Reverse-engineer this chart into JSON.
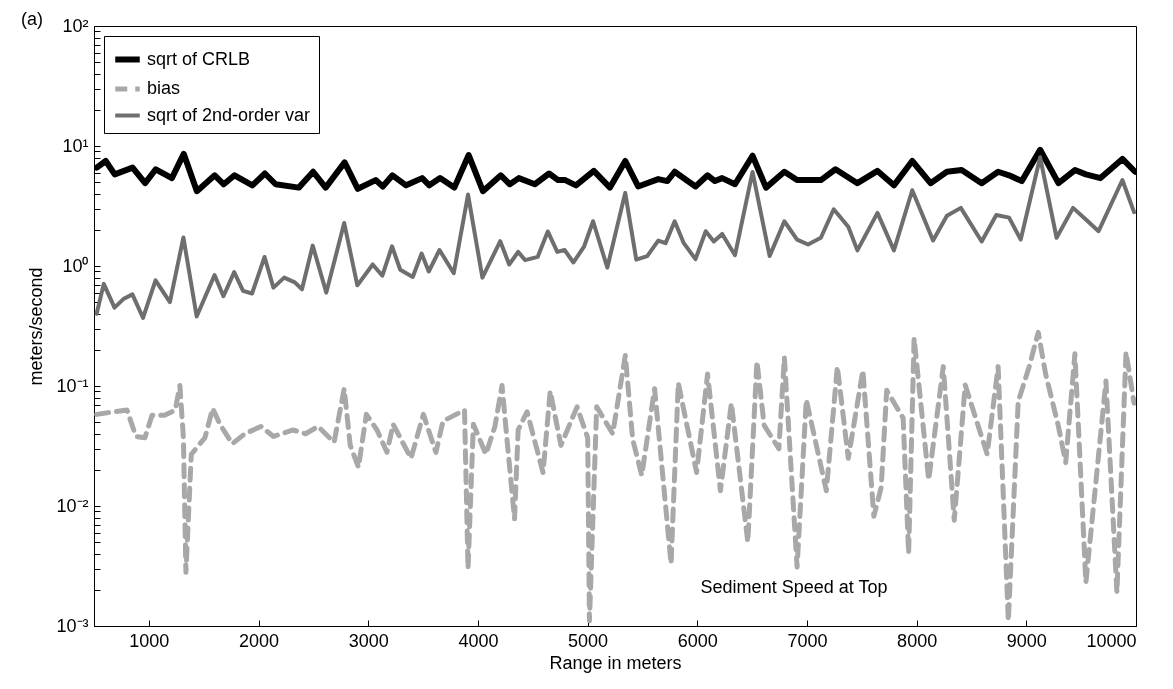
{
  "chart_data": {
    "type": "line",
    "xlabel": "Range in meters",
    "ylabel": "meters/second",
    "log": "y",
    "xlim": [
      500,
      10000
    ],
    "xticks": [
      1000,
      2000,
      3000,
      4000,
      5000,
      6000,
      7000,
      8000,
      9000,
      10000
    ],
    "ylim": [
      0.001,
      100
    ],
    "yticks": [
      {
        "value": 0.001,
        "label": "10⁻³"
      },
      {
        "value": 0.002,
        "label": null
      },
      {
        "value": 0.003,
        "label": null
      },
      {
        "value": 0.004,
        "label": null
      },
      {
        "value": 0.005,
        "label": null
      },
      {
        "value": 0.006,
        "label": null
      },
      {
        "value": 0.007,
        "label": null
      },
      {
        "value": 0.008,
        "label": null
      },
      {
        "value": 0.009,
        "label": null
      },
      {
        "value": 0.01,
        "label": "10⁻²"
      },
      {
        "value": 0.02,
        "label": null
      },
      {
        "value": 0.03,
        "label": null
      },
      {
        "value": 0.04,
        "label": null
      },
      {
        "value": 0.05,
        "label": null
      },
      {
        "value": 0.06,
        "label": null
      },
      {
        "value": 0.07,
        "label": null
      },
      {
        "value": 0.08,
        "label": null
      },
      {
        "value": 0.09,
        "label": null
      },
      {
        "value": 0.1,
        "label": "10⁻¹"
      },
      {
        "value": 0.2,
        "label": null
      },
      {
        "value": 0.3,
        "label": null
      },
      {
        "value": 0.4,
        "label": null
      },
      {
        "value": 0.5,
        "label": null
      },
      {
        "value": 0.6,
        "label": null
      },
      {
        "value": 0.7,
        "label": null
      },
      {
        "value": 0.8,
        "label": null
      },
      {
        "value": 0.9,
        "label": null
      },
      {
        "value": 1,
        "label": "10⁰"
      },
      {
        "value": 2,
        "label": null
      },
      {
        "value": 3,
        "label": null
      },
      {
        "value": 4,
        "label": null
      },
      {
        "value": 5,
        "label": null
      },
      {
        "value": 6,
        "label": null
      },
      {
        "value": 7,
        "label": null
      },
      {
        "value": 8,
        "label": null
      },
      {
        "value": 9,
        "label": null
      },
      {
        "value": 10,
        "label": "10¹"
      },
      {
        "value": 20,
        "label": null
      },
      {
        "value": 30,
        "label": null
      },
      {
        "value": 40,
        "label": null
      },
      {
        "value": 50,
        "label": null
      },
      {
        "value": 60,
        "label": null
      },
      {
        "value": 70,
        "label": null
      },
      {
        "value": 80,
        "label": null
      },
      {
        "value": 90,
        "label": null
      },
      {
        "value": 100,
        "label": "10²"
      }
    ],
    "legend": "top left",
    "grid": false,
    "annotations": [
      "(a)",
      "Sediment Speed at Top"
    ],
    "series": [
      {
        "name": "sqrt of CRLB",
        "color": "#000000",
        "line_style": "solid",
        "x": [
          525,
          607,
          689,
          852,
          966,
          1063,
          1210,
          1318,
          1438,
          1601,
          1683,
          1781,
          1944,
          2058,
          2156,
          2367,
          2498,
          2612,
          2785,
          2905,
          3068,
          3133,
          3221,
          3345,
          3492,
          3557,
          3655,
          3785,
          3916,
          4046,
          4209,
          4291,
          4373,
          4519,
          4649,
          4731,
          4796,
          4894,
          5057,
          5204,
          5344,
          5461,
          5644,
          5727,
          5794,
          5984,
          6094,
          6161,
          6227,
          6344,
          6504,
          6627,
          6794,
          6910,
          7127,
          7260,
          7460,
          7643,
          7793,
          7960,
          8127,
          8276,
          8410,
          8593,
          8743,
          8843,
          8959,
          9126,
          9293,
          9443,
          9543,
          9676,
          9876,
          9992
        ],
        "values": [
          6.6,
          7.5,
          5.8,
          6.6,
          4.9,
          6.4,
          5.4,
          8.6,
          4.2,
          5.7,
          4.8,
          5.7,
          4.7,
          5.9,
          4.8,
          4.5,
          6.1,
          4.5,
          7.3,
          4.4,
          5.2,
          4.6,
          5.7,
          4.7,
          5.4,
          4.7,
          5.4,
          4.5,
          8.4,
          4.2,
          5.7,
          4.8,
          5.4,
          4.8,
          5.9,
          5.2,
          5.2,
          4.7,
          6.2,
          4.5,
          7.5,
          4.6,
          5.3,
          5.1,
          6.1,
          4.6,
          5.7,
          5.1,
          5.4,
          4.8,
          8.3,
          4.5,
          6.1,
          5.2,
          5.2,
          6.4,
          4.9,
          6.2,
          4.7,
          7.5,
          4.9,
          6.1,
          6.3,
          4.9,
          6.1,
          5.7,
          5.1,
          9.3,
          4.9,
          6.3,
          5.8,
          5.4,
          7.8,
          6.1
        ]
      },
      {
        "name": "bias",
        "color": "#a8a8a8",
        "line_style": "dashed",
        "x": [
          524,
          687,
          801,
          882,
          964,
          1029,
          1143,
          1241,
          1283,
          1315,
          1338,
          1387,
          1511,
          1582,
          1648,
          1761,
          1875,
          2022,
          2136,
          2315,
          2429,
          2543,
          2689,
          2781,
          2836,
          2911,
          2983,
          3080,
          3171,
          3227,
          3390,
          3503,
          3617,
          3682,
          3878,
          3910,
          3959,
          4073,
          4155,
          4220,
          4269,
          4334,
          4367,
          4448,
          4594,
          4659,
          4757,
          4904,
          5001,
          5017,
          5083,
          5229,
          5344,
          5411,
          5494,
          5611,
          5761,
          5827,
          5994,
          6094,
          6211,
          6311,
          6461,
          6544,
          6610,
          6744,
          6794,
          6910,
          6994,
          7177,
          7277,
          7377,
          7510,
          7610,
          7677,
          7727,
          7877,
          7927,
          7977,
          8110,
          8243,
          8343,
          8443,
          8643,
          8743,
          8836,
          8926,
          9026,
          9109,
          9176,
          9293,
          9359,
          9443,
          9543,
          9726,
          9826,
          9909,
          9982
        ],
        "values": [
          0.058,
          0.061,
          0.063,
          0.038,
          0.037,
          0.057,
          0.057,
          0.063,
          0.101,
          0.037,
          0.0028,
          0.027,
          0.037,
          0.065,
          0.048,
          0.033,
          0.04,
          0.046,
          0.038,
          0.043,
          0.04,
          0.046,
          0.034,
          0.095,
          0.032,
          0.021,
          0.058,
          0.043,
          0.028,
          0.048,
          0.025,
          0.058,
          0.028,
          0.051,
          0.063,
          0.003,
          0.048,
          0.027,
          0.046,
          0.101,
          0.033,
          0.0078,
          0.043,
          0.061,
          0.019,
          0.091,
          0.032,
          0.067,
          0.037,
          0.0011,
          0.067,
          0.04,
          0.18,
          0.036,
          0.018,
          0.095,
          0.0033,
          0.106,
          0.019,
          0.126,
          0.0134,
          0.072,
          0.005,
          0.161,
          0.047,
          0.03,
          0.173,
          0.0031,
          0.077,
          0.0134,
          0.145,
          0.025,
          0.135,
          0.0082,
          0.0143,
          0.092,
          0.054,
          0.004,
          0.25,
          0.0165,
          0.145,
          0.0076,
          0.102,
          0.027,
          0.145,
          0.0011,
          0.074,
          0.145,
          0.28,
          0.126,
          0.046,
          0.023,
          0.186,
          0.0023,
          0.11,
          0.0019,
          0.192,
          0.072
        ]
      },
      {
        "name": "sqrt of 2nd-order var",
        "color": "#6e6e6e",
        "line_style": "solid",
        "x": [
          524,
          589,
          687,
          768,
          850,
          947,
          1061,
          1192,
          1315,
          1436,
          1599,
          1680,
          1778,
          1859,
          1941,
          2055,
          2136,
          2234,
          2331,
          2396,
          2494,
          2618,
          2781,
          2901,
          3041,
          3129,
          3217,
          3292,
          3406,
          3487,
          3552,
          3650,
          3780,
          3910,
          4041,
          4204,
          4285,
          4367,
          4431,
          4545,
          4637,
          4724,
          4790,
          4871,
          4969,
          5050,
          5180,
          5343,
          5444,
          5544,
          5644,
          5711,
          5794,
          5877,
          5984,
          6077,
          6151,
          6227,
          6344,
          6504,
          6660,
          6794,
          6910,
          7010,
          7127,
          7244,
          7377,
          7460,
          7643,
          7793,
          7960,
          8150,
          8276,
          8403,
          8593,
          8726,
          8843,
          8949,
          9126,
          9276,
          9426,
          9543,
          9659,
          9876,
          9982
        ],
        "values": [
          0.4,
          0.71,
          0.45,
          0.53,
          0.58,
          0.37,
          0.76,
          0.5,
          1.73,
          0.38,
          0.84,
          0.56,
          0.89,
          0.62,
          0.59,
          1.19,
          0.66,
          0.8,
          0.73,
          0.64,
          1.48,
          0.6,
          2.28,
          0.69,
          1.03,
          0.83,
          1.46,
          0.93,
          0.81,
          1.27,
          0.9,
          1.36,
          0.87,
          3.94,
          0.8,
          1.61,
          1.03,
          1.31,
          1.12,
          1.19,
          1.94,
          1.31,
          1.36,
          1.07,
          1.46,
          2.36,
          0.97,
          4.07,
          1.13,
          1.21,
          1.63,
          1.55,
          2.36,
          1.55,
          1.14,
          1.95,
          1.6,
          1.85,
          1.23,
          6.08,
          1.21,
          2.36,
          1.66,
          1.51,
          1.72,
          2.97,
          2.12,
          1.35,
          2.77,
          1.35,
          4.28,
          1.63,
          2.62,
          3.05,
          1.6,
          2.66,
          2.53,
          1.66,
          8.05,
          1.72,
          3.05,
          2.44,
          1.95,
          5.21,
          2.81
        ]
      }
    ]
  }
}
